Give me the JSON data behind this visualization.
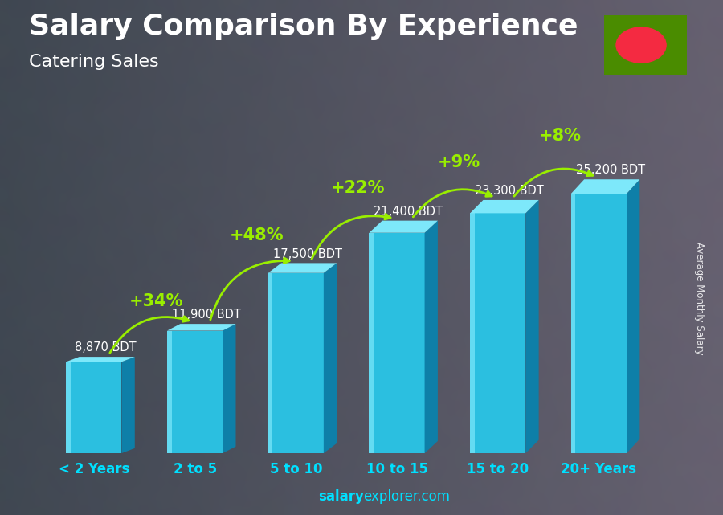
{
  "title": "Salary Comparison By Experience",
  "subtitle": "Catering Sales",
  "categories": [
    "< 2 Years",
    "2 to 5",
    "5 to 10",
    "10 to 15",
    "15 to 20",
    "20+ Years"
  ],
  "values": [
    8870,
    11900,
    17500,
    21400,
    23300,
    25200
  ],
  "salary_labels": [
    "8,870 BDT",
    "11,900 BDT",
    "17,500 BDT",
    "21,400 BDT",
    "23,300 BDT",
    "25,200 BDT"
  ],
  "pct_labels": [
    "+34%",
    "+48%",
    "+22%",
    "+9%",
    "+8%"
  ],
  "pct_positions": [
    1,
    2,
    3,
    4,
    5
  ],
  "bar_front": "#2bbfe0",
  "bar_side": "#0e7fa8",
  "bar_top": "#7de8fa",
  "bar_highlight": "#55d4f0",
  "title_fontsize": 26,
  "subtitle_fontsize": 17,
  "label_fontsize": 11,
  "tick_fontsize": 12,
  "ylabel": "Average Monthly Salary",
  "footer_bold": "salary",
  "footer_normal": "explorer.com",
  "bg_dark": "#2a3a4a",
  "text_color": "#ffffff",
  "pct_color": "#99ee00",
  "salary_label_color": "#e0e0e0",
  "arrow_color": "#99ee00",
  "flag_green": "#4a8c00",
  "flag_red": "#f42a41",
  "ymax": 30000
}
